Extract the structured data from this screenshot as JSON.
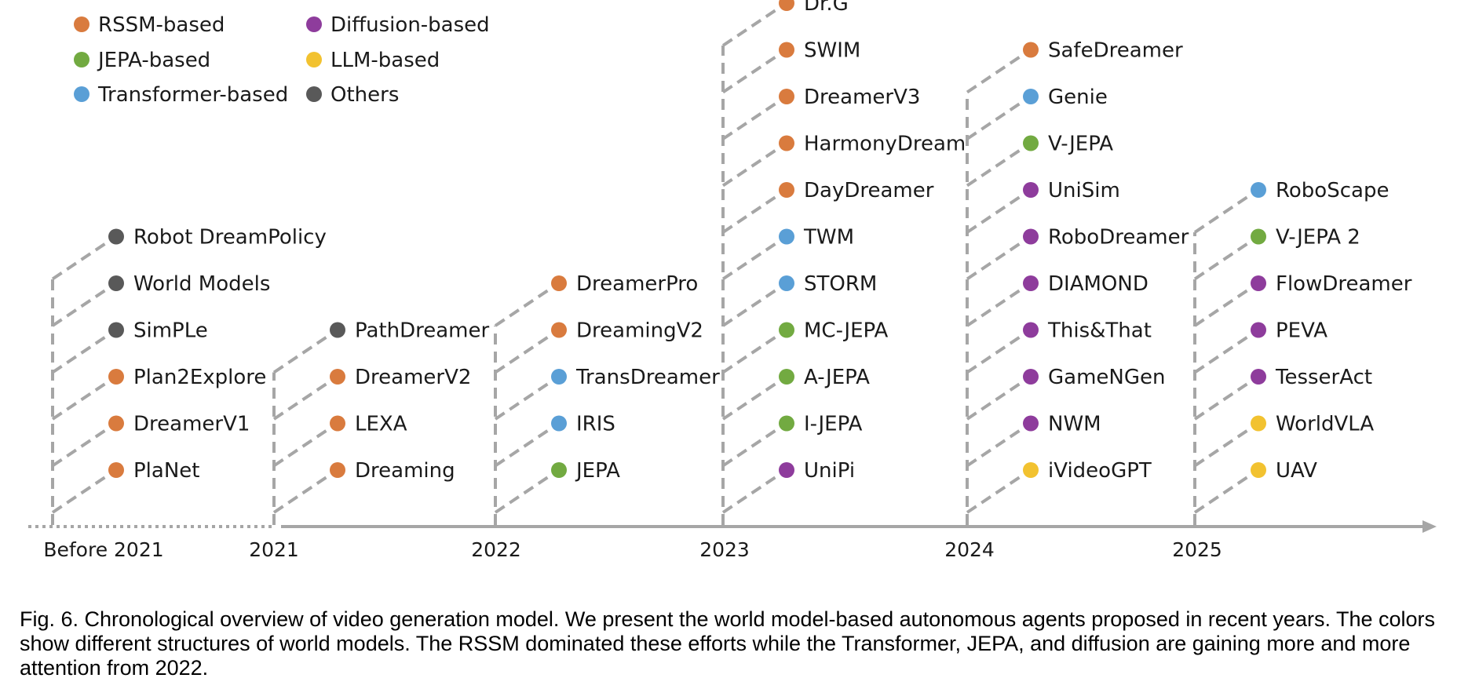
{
  "colors": {
    "rssm": "#D97B3E",
    "jepa": "#72AA41",
    "transformer": "#5A9FD6",
    "diffusion": "#8E3C9C",
    "llm": "#F2C230",
    "others": "#595959",
    "axis": "#A6A6A6",
    "text": "#1a1a1a"
  },
  "legend": [
    {
      "label": "RSSM-based",
      "category": "rssm"
    },
    {
      "label": "JEPA-based",
      "category": "jepa"
    },
    {
      "label": "Transformer-based",
      "category": "transformer"
    },
    {
      "label": "Diffusion-based",
      "category": "diffusion"
    },
    {
      "label": "LLM-based",
      "category": "llm"
    },
    {
      "label": "Others",
      "category": "others"
    }
  ],
  "periods": [
    {
      "label": "Before 2021",
      "models": [
        {
          "name": "PlaNet",
          "category": "rssm"
        },
        {
          "name": "DreamerV1",
          "category": "rssm"
        },
        {
          "name": "Plan2Explore",
          "category": "rssm"
        },
        {
          "name": "SimPLe",
          "category": "others"
        },
        {
          "name": "World Models",
          "category": "others"
        },
        {
          "name": "Robot DreamPolicy",
          "category": "others"
        }
      ]
    },
    {
      "label": "2021",
      "models": [
        {
          "name": "Dreaming",
          "category": "rssm"
        },
        {
          "name": "LEXA",
          "category": "rssm"
        },
        {
          "name": "DreamerV2",
          "category": "rssm"
        },
        {
          "name": "PathDreamer",
          "category": "others"
        }
      ]
    },
    {
      "label": "2022",
      "models": [
        {
          "name": "JEPA",
          "category": "jepa"
        },
        {
          "name": "IRIS",
          "category": "transformer"
        },
        {
          "name": "TransDreamer",
          "category": "transformer"
        },
        {
          "name": "DreamingV2",
          "category": "rssm"
        },
        {
          "name": "DreamerPro",
          "category": "rssm"
        }
      ]
    },
    {
      "label": "2023",
      "models": [
        {
          "name": "UniPi",
          "category": "diffusion"
        },
        {
          "name": "I-JEPA",
          "category": "jepa"
        },
        {
          "name": "A-JEPA",
          "category": "jepa"
        },
        {
          "name": "MC-JEPA",
          "category": "jepa"
        },
        {
          "name": "STORM",
          "category": "transformer"
        },
        {
          "name": "TWM",
          "category": "transformer"
        },
        {
          "name": "DayDreamer",
          "category": "rssm"
        },
        {
          "name": "HarmonyDream",
          "category": "rssm"
        },
        {
          "name": "DreamerV3",
          "category": "rssm"
        },
        {
          "name": "SWIM",
          "category": "rssm"
        },
        {
          "name": "Dr.G",
          "category": "rssm"
        }
      ]
    },
    {
      "label": "2024",
      "models": [
        {
          "name": "iVideoGPT",
          "category": "llm"
        },
        {
          "name": "NWM",
          "category": "diffusion"
        },
        {
          "name": "GameNGen",
          "category": "diffusion"
        },
        {
          "name": "This&That",
          "category": "diffusion"
        },
        {
          "name": "DIAMOND",
          "category": "diffusion"
        },
        {
          "name": "RoboDreamer",
          "category": "diffusion"
        },
        {
          "name": "UniSim",
          "category": "diffusion"
        },
        {
          "name": "V-JEPA",
          "category": "jepa"
        },
        {
          "name": "Genie",
          "category": "transformer"
        },
        {
          "name": "SafeDreamer",
          "category": "rssm"
        }
      ]
    },
    {
      "label": "2025",
      "models": [
        {
          "name": "UAV",
          "category": "llm"
        },
        {
          "name": "WorldVLA",
          "category": "llm"
        },
        {
          "name": "TesserAct",
          "category": "diffusion"
        },
        {
          "name": "PEVA",
          "category": "diffusion"
        },
        {
          "name": "FlowDreamer",
          "category": "diffusion"
        },
        {
          "name": "V-JEPA 2",
          "category": "jepa"
        },
        {
          "name": "RoboScape",
          "category": "transformer"
        }
      ]
    }
  ],
  "caption": "Fig. 6. Chronological overview of video generation model. We present the world model-based autonomous agents proposed in recent years. The colors show different structures of world models. The RSSM dominated these efforts while the Transformer, JEPA, and diffusion are gaining more and more attention from 2022."
}
